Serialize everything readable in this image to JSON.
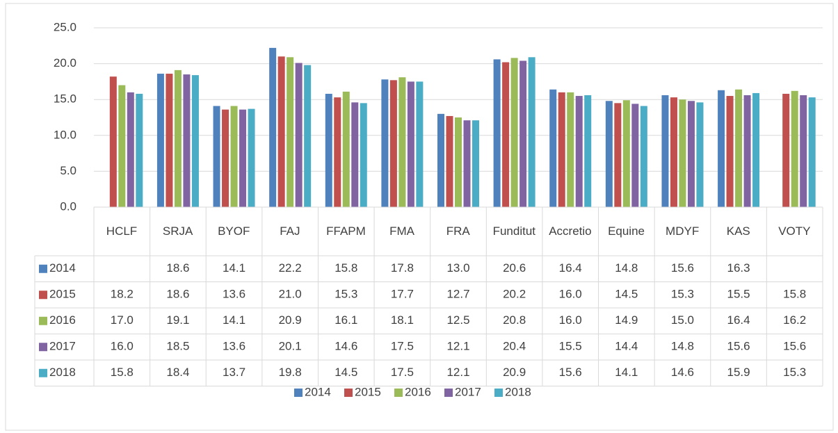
{
  "chart_data": {
    "type": "bar",
    "categories": [
      "HCLF",
      "SRJA",
      "BYOF",
      "FAJ",
      "FFAPM",
      "FMA",
      "FRA",
      "Funditut",
      "Accretio",
      "Equine",
      "MDYF",
      "KAS",
      "VOTY"
    ],
    "series": [
      {
        "name": "2014",
        "color": "#4f81bd",
        "values": [
          null,
          18.6,
          14.1,
          22.2,
          15.8,
          17.8,
          13.0,
          20.6,
          16.4,
          14.8,
          15.6,
          16.3,
          null
        ],
        "value_labels": [
          null,
          "18.6",
          "14.1",
          "22.2",
          "15.8",
          "17.8",
          "13.0",
          "20.6",
          "16.4",
          "14.8",
          "15.6",
          "16.3",
          null
        ]
      },
      {
        "name": "2015",
        "color": "#c0504d",
        "values": [
          18.2,
          18.6,
          13.6,
          21.0,
          15.3,
          17.7,
          12.7,
          20.2,
          16.0,
          14.5,
          15.3,
          15.5,
          15.8
        ],
        "value_labels": [
          "18.2",
          "18.6",
          "13.6",
          "21.0",
          "15.3",
          "17.7",
          "12.7",
          "20.2",
          "16.0",
          "14.5",
          "15.3",
          "15.5",
          "15.8"
        ]
      },
      {
        "name": "2016",
        "color": "#9bbb59",
        "values": [
          17.0,
          19.1,
          14.1,
          20.9,
          16.1,
          18.1,
          12.5,
          20.8,
          16.0,
          14.9,
          15.0,
          16.4,
          16.2
        ],
        "value_labels": [
          "17.0",
          "19.1",
          "14.1",
          "20.9",
          "16.1",
          "18.1",
          "12.5",
          "20.8",
          "16.0",
          "14.9",
          "15.0",
          "16.4",
          "16.2"
        ]
      },
      {
        "name": "2017",
        "color": "#8064a2",
        "values": [
          16.0,
          18.5,
          13.6,
          20.1,
          14.6,
          17.5,
          12.1,
          20.4,
          15.5,
          14.4,
          14.8,
          15.6,
          15.6
        ],
        "value_labels": [
          "16.0",
          "18.5",
          "13.6",
          "20.1",
          "14.6",
          "17.5",
          "12.1",
          "20.4",
          "15.5",
          "14.4",
          "14.8",
          "15.6",
          "15.6"
        ]
      },
      {
        "name": "2018",
        "color": "#4bacc6",
        "values": [
          15.8,
          18.4,
          13.7,
          19.8,
          14.5,
          17.5,
          12.1,
          20.9,
          15.6,
          14.1,
          14.6,
          15.9,
          15.3
        ],
        "value_labels": [
          "15.8",
          "18.4",
          "13.7",
          "19.8",
          "14.5",
          "17.5",
          "12.1",
          "20.9",
          "15.6",
          "14.1",
          "14.6",
          "15.9",
          "15.3"
        ]
      }
    ],
    "ylim": [
      0,
      25
    ],
    "yticks": [
      {
        "value": 0,
        "label": "0.0"
      },
      {
        "value": 5,
        "label": "5.0"
      },
      {
        "value": 10,
        "label": "10.0"
      },
      {
        "value": 15,
        "label": "15.0"
      },
      {
        "value": 20,
        "label": "20.0"
      },
      {
        "value": 25,
        "label": "25.0"
      }
    ],
    "grid": true,
    "legend": "bottom"
  }
}
